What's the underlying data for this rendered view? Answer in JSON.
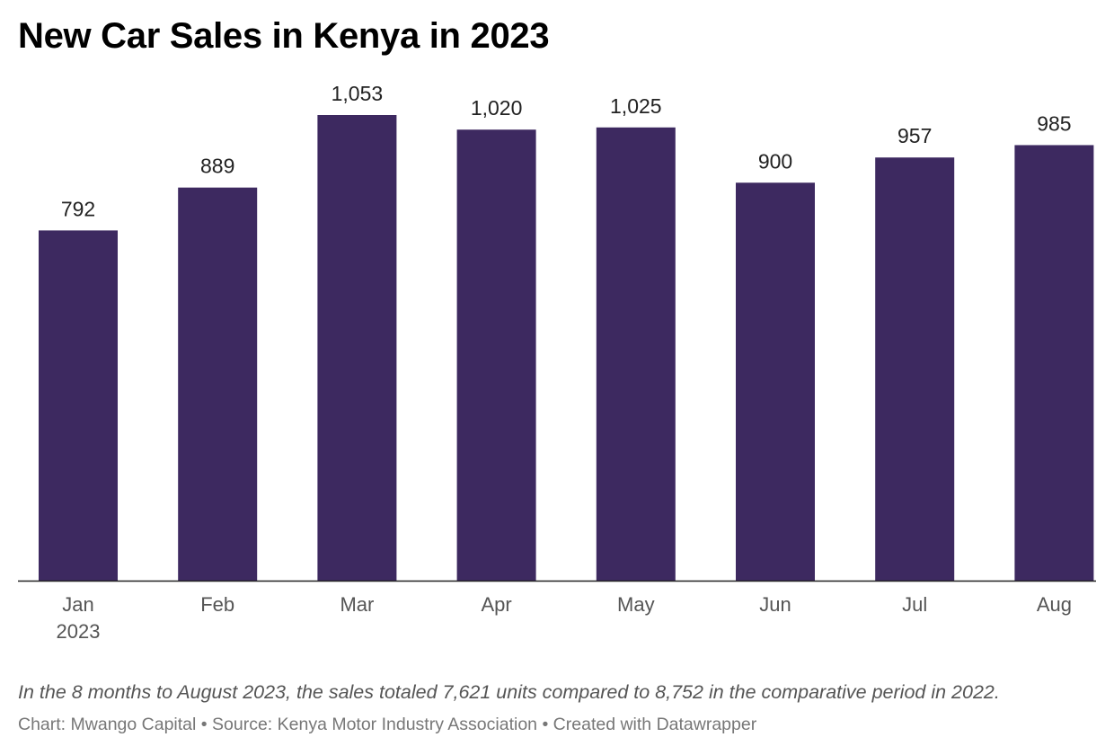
{
  "chart_data": {
    "type": "bar",
    "title": "New Car Sales in Kenya in 2023",
    "categories": [
      "Jan",
      "Feb",
      "Mar",
      "Apr",
      "May",
      "Jun",
      "Jul",
      "Aug"
    ],
    "category_sublabels": [
      "2023",
      "",
      "",
      "",
      "",
      "",
      "",
      ""
    ],
    "values": [
      792,
      889,
      1053,
      1020,
      1025,
      900,
      957,
      985
    ],
    "value_labels": [
      "792",
      "889",
      "1,053",
      "1,020",
      "1,025",
      "900",
      "957",
      "985"
    ],
    "bar_color": "#3d2960",
    "ylim": [
      0,
      1053
    ],
    "grid": false,
    "legend": "none"
  },
  "notes": {
    "description": "In the 8 months to August 2023, the sales totaled 7,621 units compared to 8,752 in the comparative period in 2022.",
    "credit": "Chart: Mwango Capital • Source: Kenya Motor Industry Association  • Created with Datawrapper"
  }
}
